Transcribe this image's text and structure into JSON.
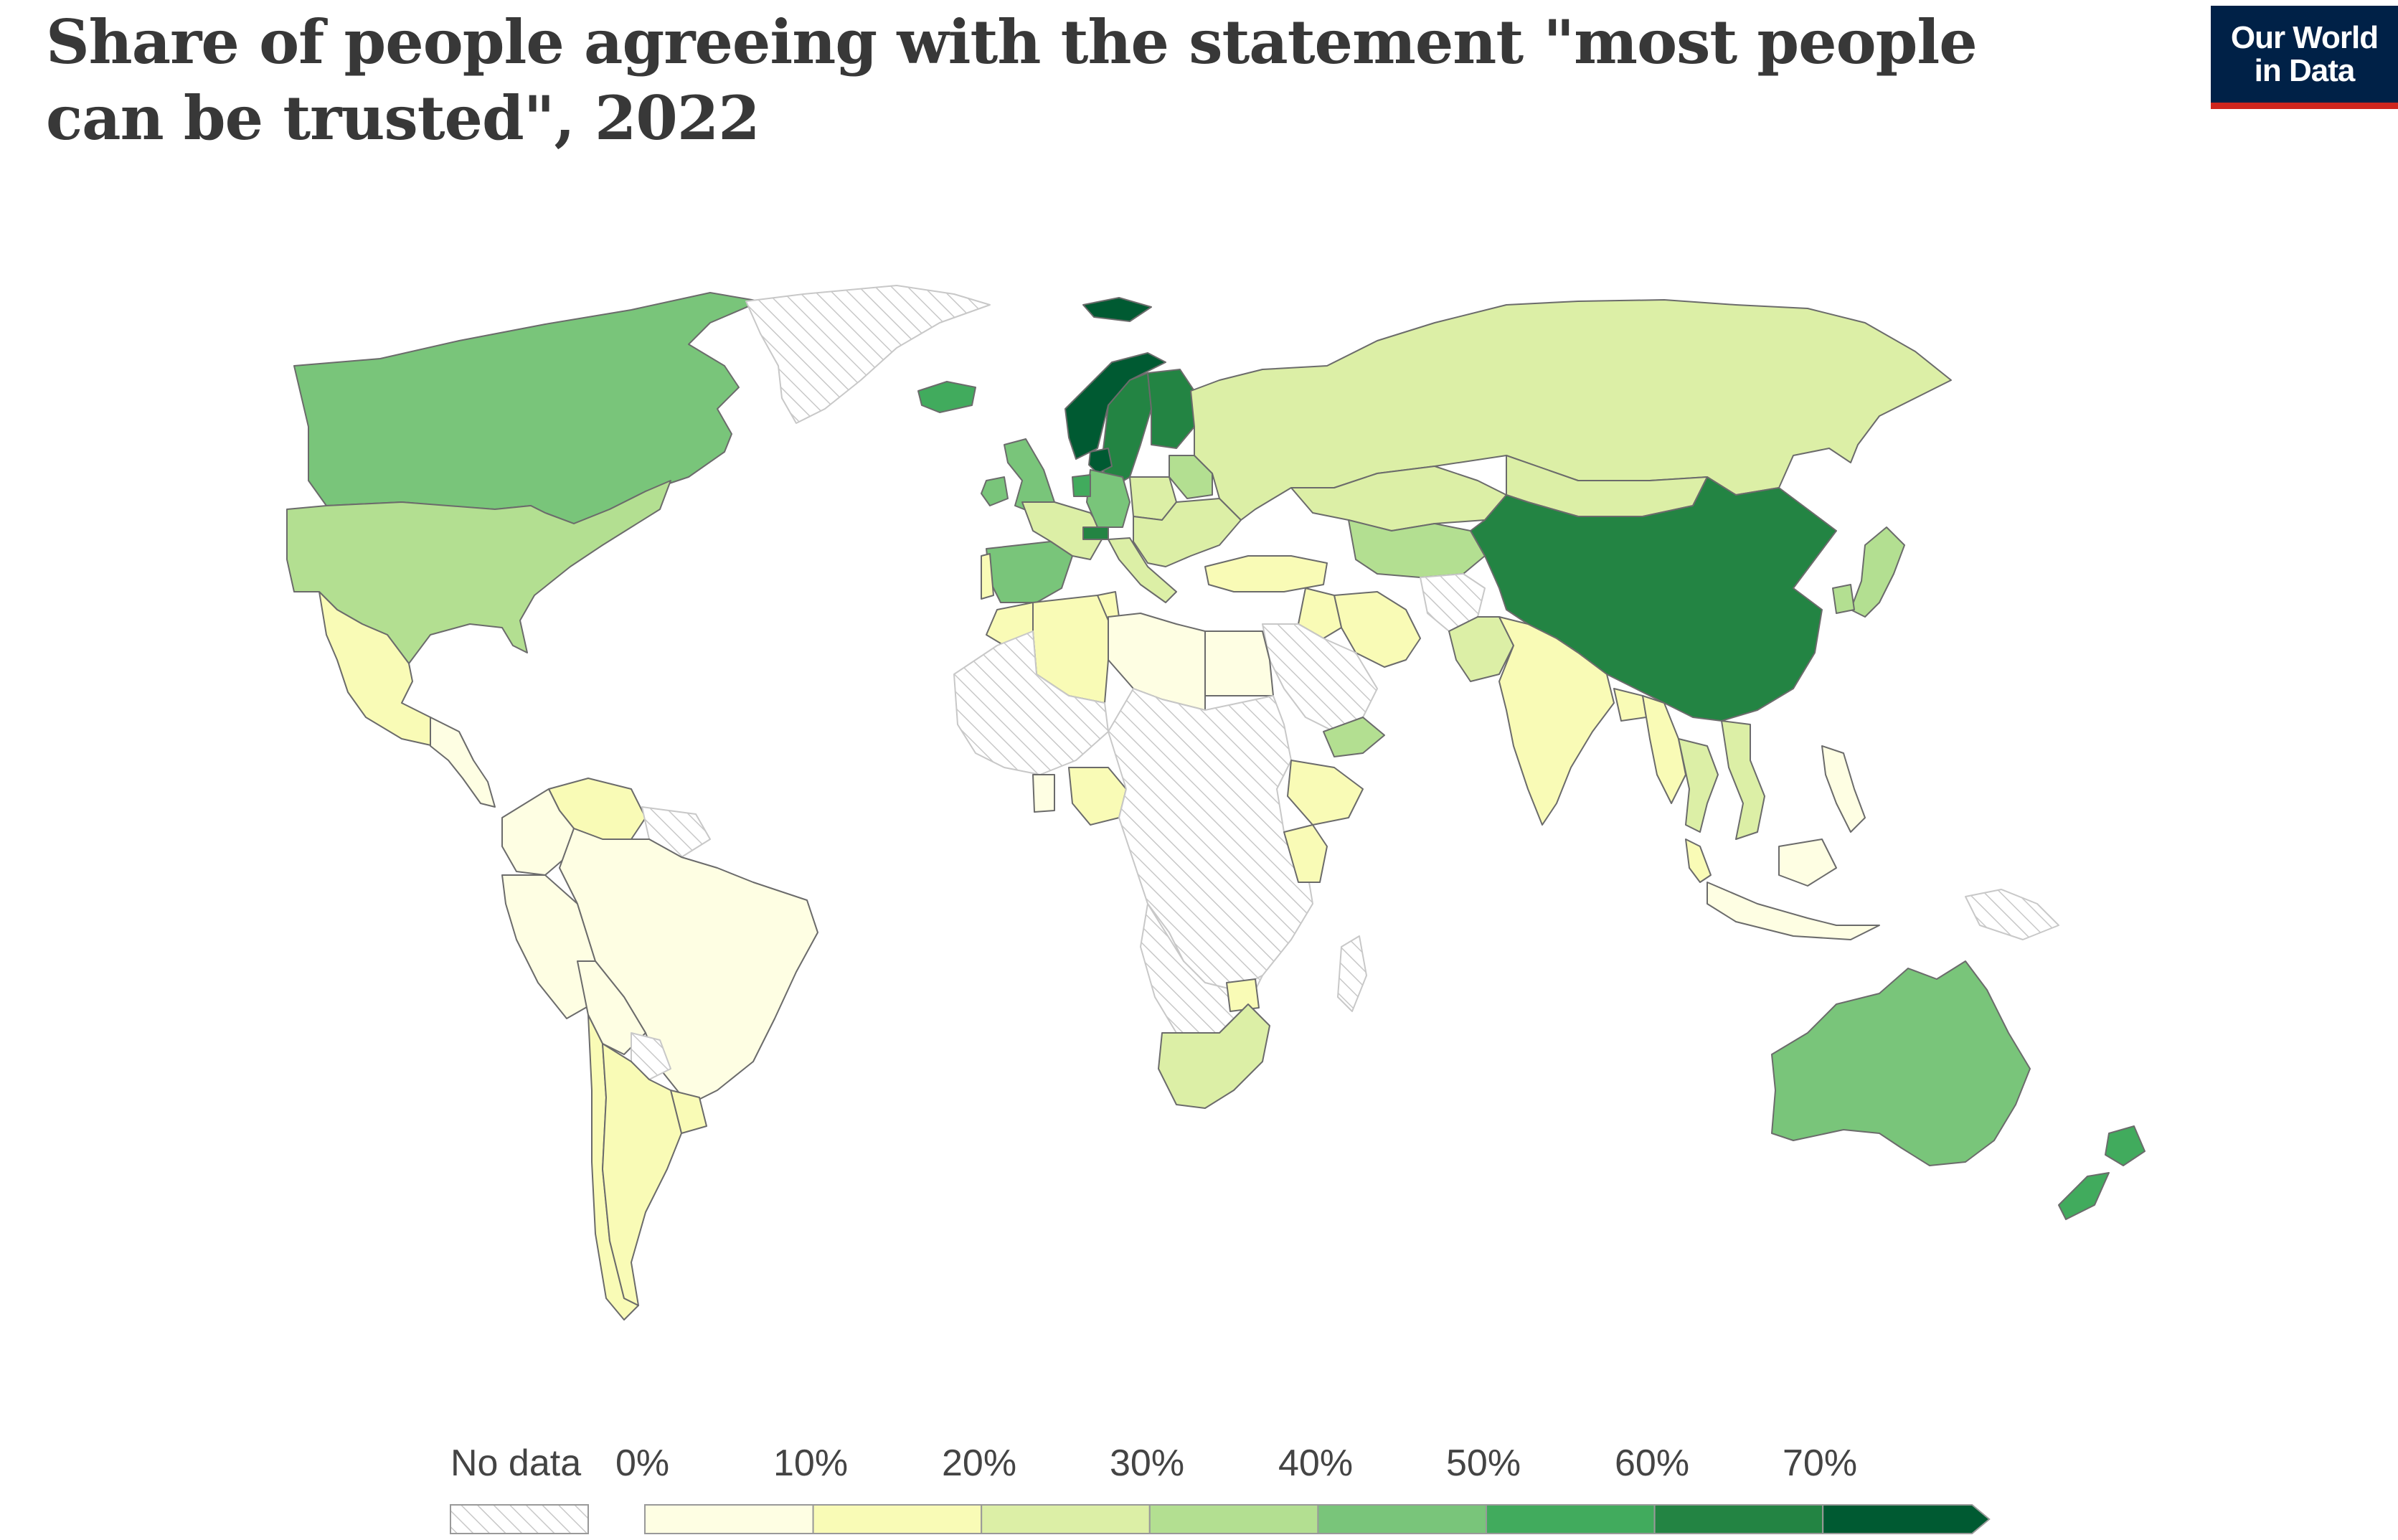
{
  "title": "Share of people agreeing with the statement \"most people can be trusted\", 2022",
  "logo": {
    "line1": "Our World",
    "line2": "in Data",
    "bg": "#002147",
    "accent": "#ce261e"
  },
  "colors": {
    "no_data_stroke": "#c8c8c8",
    "border": "#6b6b6b",
    "bins": [
      "#fefee3",
      "#f9fbb6",
      "#dcefa6",
      "#b3df91",
      "#79c57a",
      "#41ab5d",
      "#238443",
      "#005a32"
    ]
  },
  "legend": {
    "no_data_label": "No data",
    "tick_labels": [
      "0%",
      "10%",
      "20%",
      "30%",
      "40%",
      "50%",
      "60%",
      "70%"
    ]
  },
  "map_data": {
    "type": "choropleth",
    "unit": "%",
    "bins": [
      0,
      10,
      20,
      30,
      40,
      50,
      60,
      70
    ],
    "regions": [
      {
        "name": "Canada",
        "value": 45
      },
      {
        "name": "United States",
        "value": 37
      },
      {
        "name": "Greenland",
        "value": null
      },
      {
        "name": "Mexico",
        "value": 12
      },
      {
        "name": "Central America",
        "value": 8
      },
      {
        "name": "Venezuela",
        "value": 14
      },
      {
        "name": "Guyana",
        "value": null
      },
      {
        "name": "Colombia",
        "value": 4
      },
      {
        "name": "Peru",
        "value": 4
      },
      {
        "name": "Brazil",
        "value": 4
      },
      {
        "name": "Bolivia",
        "value": 8
      },
      {
        "name": "Paraguay",
        "value": null
      },
      {
        "name": "Uruguay",
        "value": 15
      },
      {
        "name": "Chile",
        "value": 13
      },
      {
        "name": "Argentina",
        "value": 18
      },
      {
        "name": "Iceland",
        "value": 52
      },
      {
        "name": "Norway",
        "value": 72
      },
      {
        "name": "Sweden",
        "value": 63
      },
      {
        "name": "Finland",
        "value": 68
      },
      {
        "name": "Denmark",
        "value": 74
      },
      {
        "name": "Svalbard",
        "value": 72
      },
      {
        "name": "United Kingdom",
        "value": 45
      },
      {
        "name": "Ireland",
        "value": 40
      },
      {
        "name": "Spain",
        "value": 42
      },
      {
        "name": "Portugal",
        "value": 17
      },
      {
        "name": "France",
        "value": 28
      },
      {
        "name": "Germany",
        "value": 44
      },
      {
        "name": "Netherlands",
        "value": 58
      },
      {
        "name": "Switzerland",
        "value": 60
      },
      {
        "name": "Poland",
        "value": 25
      },
      {
        "name": "Italy",
        "value": 27
      },
      {
        "name": "Eastern Europe",
        "value": 22
      },
      {
        "name": "Baltics",
        "value": 38
      },
      {
        "name": "Turkey",
        "value": 16
      },
      {
        "name": "Russia",
        "value": 24
      },
      {
        "name": "Kazakhstan",
        "value": 29
      },
      {
        "name": "Central Asia",
        "value": 36
      },
      {
        "name": "Mongolia",
        "value": 27
      },
      {
        "name": "China",
        "value": 64
      },
      {
        "name": "Japan",
        "value": 33
      },
      {
        "name": "South Korea",
        "value": 32
      },
      {
        "name": "Iran",
        "value": 15
      },
      {
        "name": "Iraq",
        "value": 12
      },
      {
        "name": "Saudi Arabia",
        "value": null
      },
      {
        "name": "Yemen",
        "value": 36
      },
      {
        "name": "Afghanistan",
        "value": null
      },
      {
        "name": "Pakistan",
        "value": 23
      },
      {
        "name": "India",
        "value": 17
      },
      {
        "name": "Bangladesh",
        "value": 12
      },
      {
        "name": "Myanmar",
        "value": 14
      },
      {
        "name": "Thailand",
        "value": 28
      },
      {
        "name": "Vietnam",
        "value": 26
      },
      {
        "name": "Malaysia",
        "value": 19
      },
      {
        "name": "Indonesia",
        "value": 5
      },
      {
        "name": "Philippines",
        "value": 5
      },
      {
        "name": "Papua New Guinea",
        "value": null
      },
      {
        "name": "Australia",
        "value": 48
      },
      {
        "name": "New Zealand",
        "value": 57
      },
      {
        "name": "Morocco",
        "value": 15
      },
      {
        "name": "Algeria",
        "value": 16
      },
      {
        "name": "Tunisia",
        "value": 15
      },
      {
        "name": "Libya",
        "value": 8
      },
      {
        "name": "Egypt",
        "value": 6
      },
      {
        "name": "Western Africa",
        "value": null
      },
      {
        "name": "Nigeria",
        "value": 13
      },
      {
        "name": "Ghana",
        "value": 8
      },
      {
        "name": "Central Africa",
        "value": null
      },
      {
        "name": "Ethiopia",
        "value": 15
      },
      {
        "name": "Kenya",
        "value": 11
      },
      {
        "name": "Southern Africa",
        "value": null
      },
      {
        "name": "Zimbabwe",
        "value": 18
      },
      {
        "name": "South Africa",
        "value": 23
      },
      {
        "name": "Madagascar",
        "value": null
      }
    ]
  }
}
